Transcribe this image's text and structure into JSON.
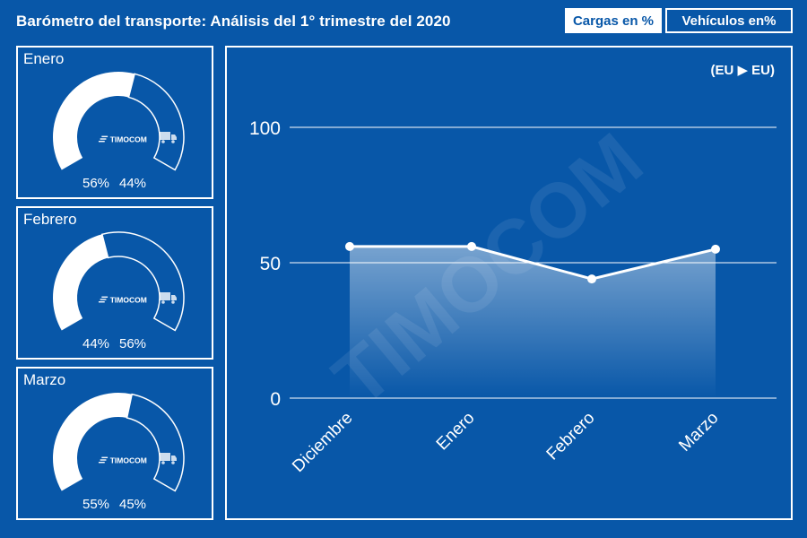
{
  "header": {
    "title": "Barómetro del transporte: Análisis del 1° trimestre del 2020",
    "btn_cargas": "Cargas en %",
    "btn_vehiculos": "Vehículos en%"
  },
  "gauges": [
    {
      "month": "Enero",
      "cargas": 56,
      "vehiculos": 44,
      "cargas_label": "56%",
      "vehiculos_label": "44%"
    },
    {
      "month": "Febrero",
      "cargas": 44,
      "vehiculos": 56,
      "cargas_label": "44%",
      "vehiculos_label": "56%"
    },
    {
      "month": "Marzo",
      "cargas": 55,
      "vehiculos": 45,
      "cargas_label": "55%",
      "vehiculos_label": "45%"
    }
  ],
  "brand": {
    "logo_text": "TIMOCOM",
    "watermark": "TIMOCOM"
  },
  "icons": {
    "cargo": "pallet-icon",
    "vehicle": "truck-icon"
  },
  "colors": {
    "background": "#0857a8",
    "foreground": "#ffffff",
    "logo_accent": "#6ea0d8"
  },
  "chart_data": {
    "type": "area",
    "route_label": "(EU ▶ EU)",
    "categories": [
      "Diciembre",
      "Enero",
      "Febrero",
      "Marzo"
    ],
    "values": [
      56,
      56,
      44,
      55
    ],
    "ylim": [
      0,
      100
    ],
    "yticks": [
      "0",
      "50",
      "100"
    ],
    "grid": true
  }
}
